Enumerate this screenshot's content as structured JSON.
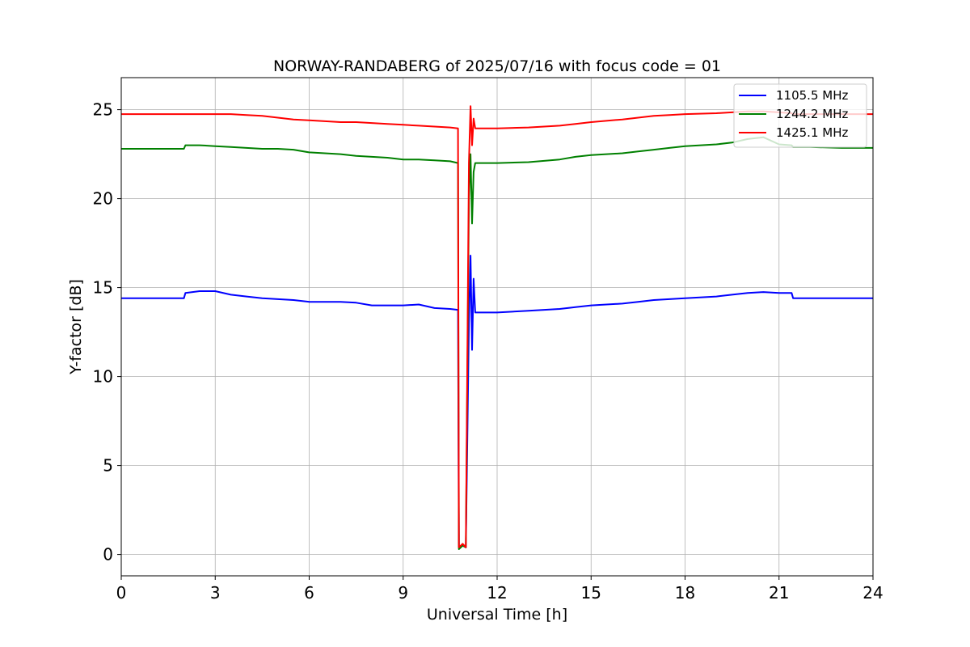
{
  "chart_data": {
    "type": "line",
    "title": "NORWAY-RANDABERG of 2025/07/16 with focus code = 01",
    "xlabel": "Universal Time [h]",
    "ylabel": "Y-factor [dB]",
    "xlim": [
      0,
      24
    ],
    "ylim": [
      -1.2,
      26.8
    ],
    "xticks": [
      "0",
      "3",
      "6",
      "9",
      "12",
      "15",
      "18",
      "21",
      "24"
    ],
    "yticks": [
      "0",
      "5",
      "10",
      "15",
      "20",
      "25"
    ],
    "grid": true,
    "legend_position": "top-right",
    "series": [
      {
        "name": "1105.5 MHz",
        "color": "#0000ff",
        "x": [
          0,
          1,
          2,
          2.05,
          2.5,
          3,
          3.5,
          4,
          4.5,
          5,
          5.5,
          6,
          6.5,
          7,
          7.5,
          8,
          8.5,
          9,
          9.5,
          10,
          10.5,
          10.75,
          10.78,
          10.9,
          11.0,
          11.1,
          11.15,
          11.2,
          11.25,
          11.3,
          11.5,
          12,
          13,
          14,
          14.5,
          15,
          16,
          16.5,
          17,
          18,
          19,
          19.5,
          20,
          20.5,
          21,
          21.4,
          21.45,
          22,
          23,
          24
        ],
        "y": [
          14.4,
          14.4,
          14.4,
          14.7,
          14.8,
          14.8,
          14.6,
          14.5,
          14.4,
          14.35,
          14.3,
          14.2,
          14.2,
          14.2,
          14.15,
          14.0,
          14.0,
          14.0,
          14.05,
          13.85,
          13.8,
          13.75,
          0.4,
          0.5,
          0.4,
          13.0,
          16.8,
          11.5,
          15.5,
          13.6,
          13.6,
          13.6,
          13.7,
          13.8,
          13.9,
          14.0,
          14.1,
          14.2,
          14.3,
          14.4,
          14.5,
          14.6,
          14.7,
          14.75,
          14.7,
          14.7,
          14.4,
          14.4,
          14.4,
          14.4
        ]
      },
      {
        "name": "1244.2 MHz",
        "color": "#008000",
        "x": [
          0,
          1,
          2,
          2.05,
          2.5,
          3,
          3.5,
          4,
          4.5,
          5,
          5.5,
          6,
          6.5,
          7,
          7.5,
          8,
          8.5,
          9,
          9.5,
          10,
          10.5,
          10.75,
          10.78,
          10.9,
          11.0,
          11.1,
          11.15,
          11.2,
          11.25,
          11.3,
          11.5,
          12,
          13,
          14,
          14.5,
          15,
          16,
          16.5,
          17,
          17.5,
          18,
          19,
          19.5,
          20,
          20.5,
          21,
          21.4,
          21.45,
          22,
          23,
          24
        ],
        "y": [
          22.8,
          22.8,
          22.8,
          23.0,
          23.0,
          22.95,
          22.9,
          22.85,
          22.8,
          22.8,
          22.75,
          22.6,
          22.55,
          22.5,
          22.4,
          22.35,
          22.3,
          22.2,
          22.2,
          22.15,
          22.1,
          22.0,
          0.3,
          0.5,
          0.4,
          20.0,
          22.5,
          18.6,
          21.5,
          22.0,
          22.0,
          22.0,
          22.05,
          22.2,
          22.35,
          22.45,
          22.55,
          22.65,
          22.75,
          22.85,
          22.95,
          23.05,
          23.15,
          23.35,
          23.45,
          23.05,
          23.0,
          22.9,
          22.9,
          22.85,
          22.85
        ]
      },
      {
        "name": "1425.1 MHz",
        "color": "#ff0000",
        "x": [
          0,
          1,
          2,
          2.5,
          3,
          3.5,
          4,
          4.5,
          5,
          5.5,
          6,
          6.5,
          7,
          7.5,
          8,
          8.5,
          9,
          9.5,
          10,
          10.5,
          10.75,
          10.78,
          10.9,
          11.0,
          11.1,
          11.15,
          11.2,
          11.25,
          11.3,
          11.5,
          12,
          13,
          14,
          14.5,
          15,
          16,
          16.5,
          17,
          17.5,
          18,
          19,
          19.5,
          20,
          20.5,
          21,
          21.4,
          21.45,
          22,
          23,
          24
        ],
        "y": [
          24.75,
          24.75,
          24.75,
          24.75,
          24.75,
          24.75,
          24.7,
          24.65,
          24.55,
          24.45,
          24.4,
          24.35,
          24.3,
          24.3,
          24.25,
          24.2,
          24.15,
          24.1,
          24.05,
          24.0,
          23.95,
          0.4,
          0.6,
          0.4,
          22.0,
          25.2,
          23.0,
          24.5,
          23.95,
          23.95,
          23.95,
          24.0,
          24.1,
          24.2,
          24.3,
          24.45,
          24.55,
          24.65,
          24.7,
          24.75,
          24.8,
          24.85,
          24.9,
          24.9,
          24.85,
          24.8,
          24.75,
          24.75,
          24.75,
          24.75
        ]
      }
    ]
  }
}
